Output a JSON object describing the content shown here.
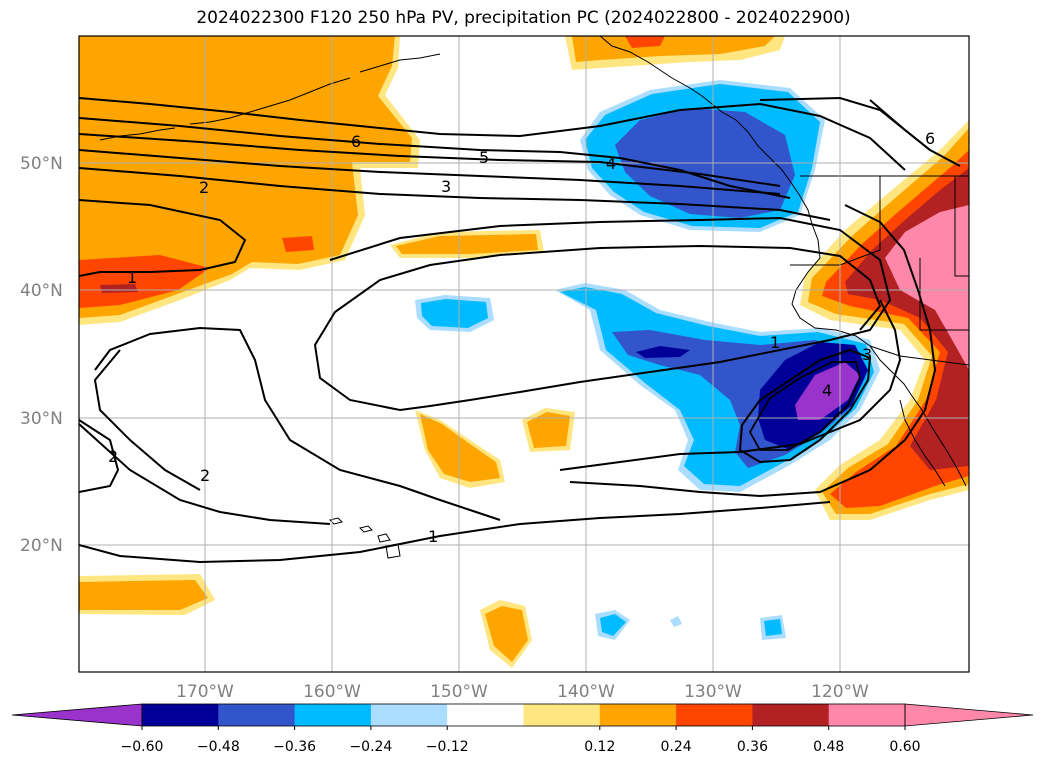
{
  "title": "2024022300 F120 250 hPa PV, precipitation PC (2024022800 - 2024022900)",
  "lat_ticks": [
    "50°N",
    "40°N",
    "30°N",
    "20°N"
  ],
  "lon_ticks": [
    "170°W",
    "160°W",
    "150°W",
    "140°W",
    "130°W",
    "120°W"
  ],
  "contour_labels": [
    "6",
    "5",
    "4",
    "3",
    "2",
    "1",
    "1",
    "2",
    "2",
    "1",
    "4",
    "3",
    "6"
  ],
  "colorbar": {
    "tick_labels": [
      "−0.60",
      "−0.48",
      "−0.36",
      "−0.24",
      "−0.12",
      "0.12",
      "0.24",
      "0.36",
      "0.48",
      "0.60"
    ],
    "colors": [
      "#9933cc",
      "#000099",
      "#3355cc",
      "#00bbff",
      "#aaddff",
      "#ffffff",
      "#ffe680",
      "#ffa500",
      "#ff4500",
      "#b22222",
      "#ff88aa",
      "#ff88aa"
    ]
  },
  "colors": {
    "land_outline": "#000000",
    "grid": "#b0b0b0",
    "pv_contour": "#000000"
  }
}
